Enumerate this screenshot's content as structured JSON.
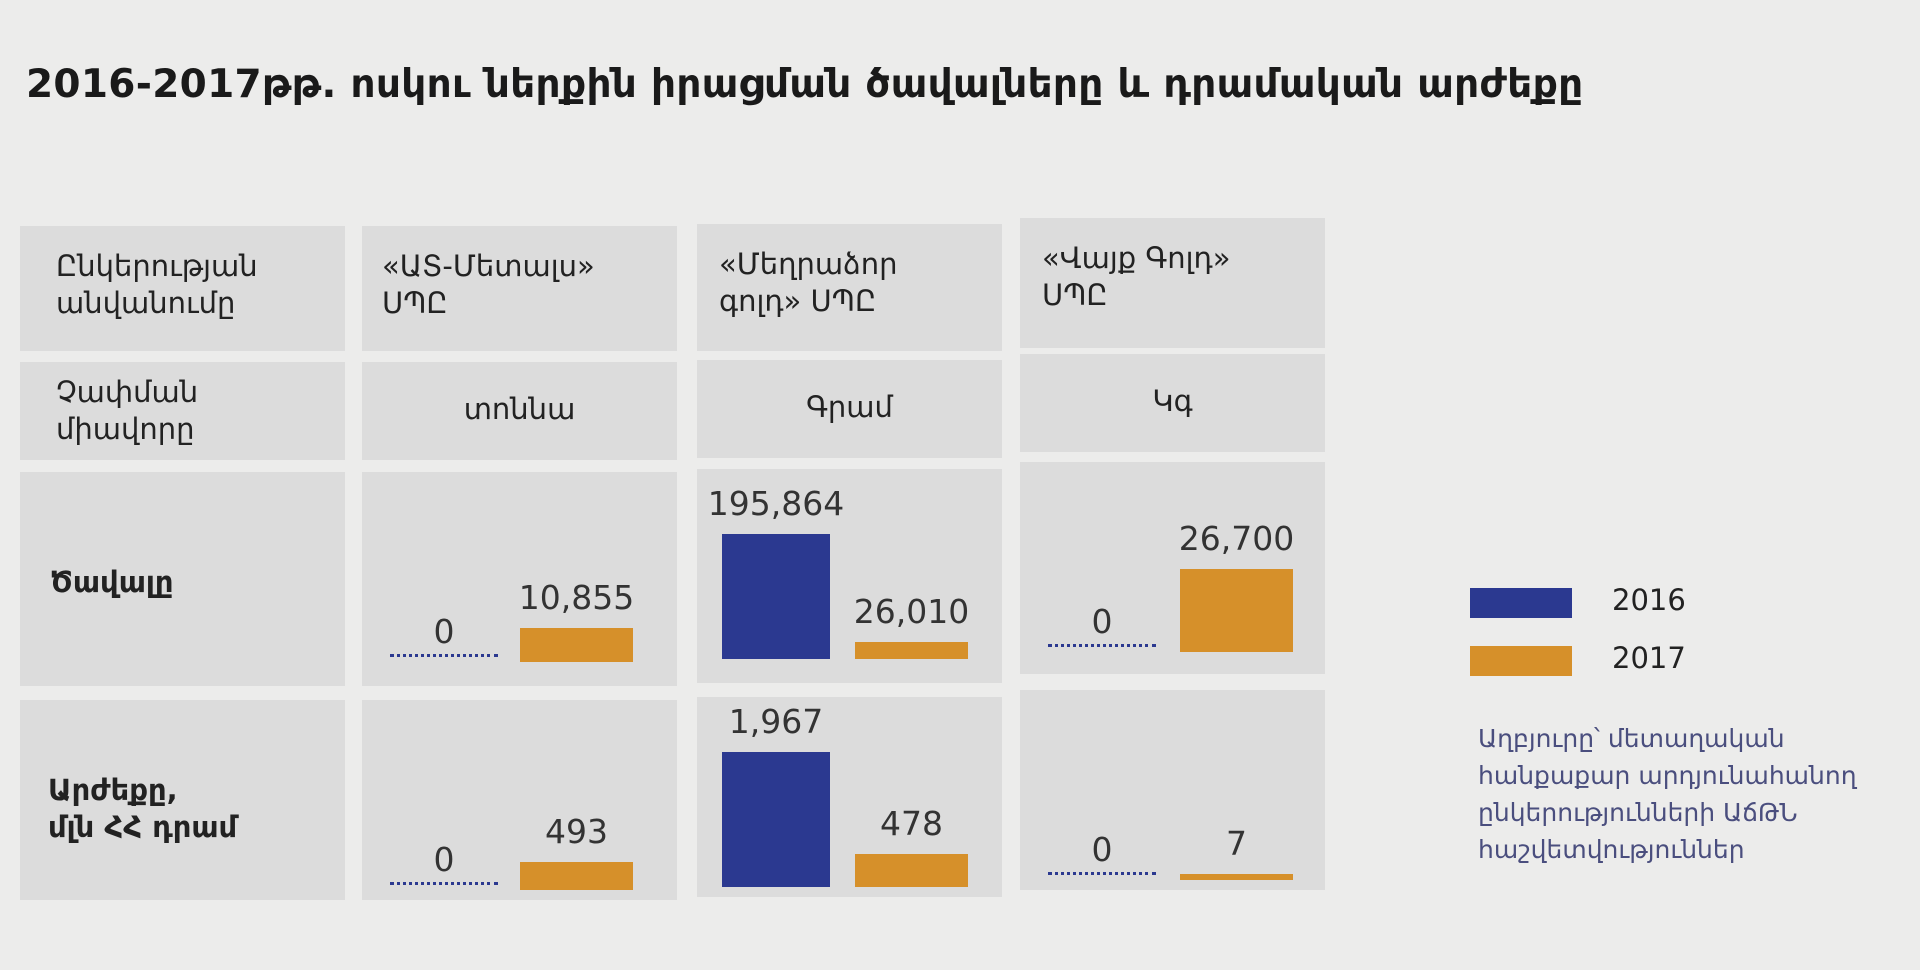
{
  "title": "2016-2017թթ. ոսկու ներքին իրացման ծավալները և դրամական արժեքը",
  "header_row": {
    "label": "Ընկերության\nանվանումը",
    "companies": [
      "«ԱՏ-Մետալս»\nՍՊԸ",
      "«Մեղրաձոր\nգոլդ» ՍՊԸ",
      "«Վայք Գոլդ»\nՍՊԸ"
    ]
  },
  "unit_row": {
    "label": "Չափման\nմիավորը",
    "units": [
      "տոննա",
      "Գրամ",
      "Կգ"
    ]
  },
  "row_labels": {
    "volume": "Ծավալը",
    "value": "Արժեքը,\nմլն ՀՀ դրամ"
  },
  "chart_data": {
    "type": "bar",
    "categories": [
      "«ԱՏ-Մետալս» ՍՊԸ",
      "«Մեղրաձոր գոլդ» ՍՊԸ",
      "«Վայք Գոլդ» ՍՊԸ"
    ],
    "series_names": [
      "2016",
      "2017"
    ],
    "colors": {
      "2016": "#2b3990",
      "2017": "#d6902a"
    },
    "panels": [
      {
        "metric": "Ծավալը",
        "units": [
          "տոննա",
          "Գրամ",
          "Կգ"
        ],
        "values": [
          {
            "2016": 0,
            "2017": 10855
          },
          {
            "2016": 195864,
            "2017": 26010
          },
          {
            "2016": 0,
            "2017": 26700
          }
        ],
        "labels": [
          {
            "2016": "0",
            "2017": "10,855"
          },
          {
            "2016": "195,864",
            "2017": "26,010"
          },
          {
            "2016": "0",
            "2017": "26,700"
          }
        ]
      },
      {
        "metric": "Արժեքը, մլն ՀՀ դրամ",
        "values": [
          {
            "2016": 0,
            "2017": 493
          },
          {
            "2016": 1967,
            "2017": 478
          },
          {
            "2016": 0,
            "2017": 7
          }
        ],
        "labels": [
          {
            "2016": "0",
            "2017": "493"
          },
          {
            "2016": "1,967",
            "2017": "478"
          },
          {
            "2016": "0",
            "2017": "7"
          }
        ]
      }
    ]
  },
  "legend": {
    "items": [
      "2016",
      "2017"
    ]
  },
  "source": "Աղբյուրը՝ մետաղական\nհանքաքար արդյունահանող\nընկերությունների ԱճԹՆ\nհաշվետվություններ"
}
